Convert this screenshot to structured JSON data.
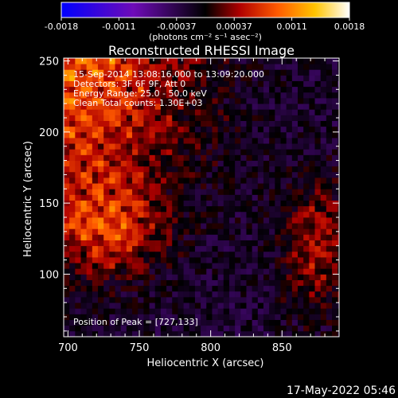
{
  "chart_data": {
    "type": "heatmap",
    "title": "Reconstructed RHESSI Image",
    "xlabel": "Heliocentric X (arcsec)",
    "ylabel": "Heliocentric Y (arcsec)",
    "xlim": [
      697,
      890
    ],
    "ylim": [
      56,
      252
    ],
    "x_ticks": [
      700,
      750,
      800,
      850
    ],
    "y_ticks": [
      100,
      150,
      200,
      250
    ],
    "colorbar": {
      "range": [
        -0.0018,
        0.0018
      ],
      "tick_labels": [
        "-0.0018",
        "-0.0011",
        "-0.00037",
        "0.00037",
        "0.0011",
        "0.0018"
      ],
      "unit_label": "(photons cm⁻² s⁻¹ asec⁻²)",
      "colors": [
        "#0000ff",
        "#6e0bb8",
        "#000000",
        "#b00000",
        "#ff5a00",
        "#ffc400",
        "#ffffff"
      ]
    },
    "annotations": [
      "15-Sep-2014 13:08:16.000 to 13:09:20.000",
      "Detectors: 3F 6F 9F, Att 0",
      "Energy Range: 25.0 - 50.0 keV",
      "Clean  Total counts: 1.30E+03",
      "Position of Peak = [727,133]"
    ],
    "peak": [
      727,
      133
    ],
    "grid": false
  },
  "footer": {
    "date": "17-May-2022 05:46"
  }
}
